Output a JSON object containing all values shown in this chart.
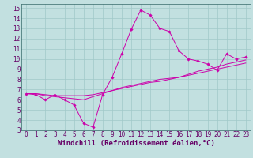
{
  "xlabel": "Windchill (Refroidissement éolien,°C)",
  "xlim": [
    -0.5,
    23.5
  ],
  "ylim": [
    3,
    15.4
  ],
  "xticks": [
    0,
    1,
    2,
    3,
    4,
    5,
    6,
    7,
    8,
    9,
    10,
    11,
    12,
    13,
    14,
    15,
    16,
    17,
    18,
    19,
    20,
    21,
    22,
    23
  ],
  "yticks": [
    3,
    4,
    5,
    6,
    7,
    8,
    9,
    10,
    11,
    12,
    13,
    14,
    15
  ],
  "bg_color": "#c2e0e0",
  "grid_color": "#a0c8c8",
  "line_color": "#cc00aa",
  "line1_x": [
    0,
    1,
    2,
    3,
    4,
    5,
    6,
    7,
    8,
    9,
    10,
    11,
    12,
    13,
    14,
    15,
    16,
    17,
    18,
    19,
    20,
    21,
    22,
    23
  ],
  "line1_y": [
    6.6,
    6.5,
    6.0,
    6.5,
    6.0,
    5.5,
    3.7,
    3.3,
    6.5,
    8.2,
    10.5,
    12.9,
    14.8,
    14.3,
    13.0,
    12.7,
    10.8,
    10.0,
    9.8,
    9.5,
    8.9,
    10.5,
    10.0,
    10.2
  ],
  "line2_x": [
    0,
    1,
    2,
    3,
    4,
    5,
    6,
    7,
    8,
    9,
    10,
    11,
    12,
    13,
    14,
    15,
    16,
    17,
    18,
    19,
    20,
    21,
    22,
    23
  ],
  "line2_y": [
    6.6,
    6.6,
    6.5,
    6.4,
    6.4,
    6.4,
    6.4,
    6.5,
    6.7,
    6.9,
    7.1,
    7.3,
    7.5,
    7.7,
    7.8,
    8.0,
    8.2,
    8.5,
    8.8,
    9.0,
    9.2,
    9.5,
    9.7,
    9.9
  ],
  "line3_x": [
    0,
    1,
    2,
    3,
    4,
    5,
    6,
    7,
    8,
    9,
    10,
    11,
    12,
    13,
    14,
    15,
    16,
    17,
    18,
    19,
    20,
    21,
    22,
    23
  ],
  "line3_y": [
    6.6,
    6.6,
    6.4,
    6.3,
    6.2,
    6.1,
    6.0,
    6.3,
    6.6,
    6.9,
    7.2,
    7.4,
    7.6,
    7.8,
    8.0,
    8.1,
    8.2,
    8.4,
    8.6,
    8.8,
    9.0,
    9.2,
    9.4,
    9.6
  ],
  "tick_fontsize": 5.5,
  "xlabel_fontsize": 6.5,
  "marker": "D",
  "markersize": 1.8,
  "linewidth": 0.7
}
